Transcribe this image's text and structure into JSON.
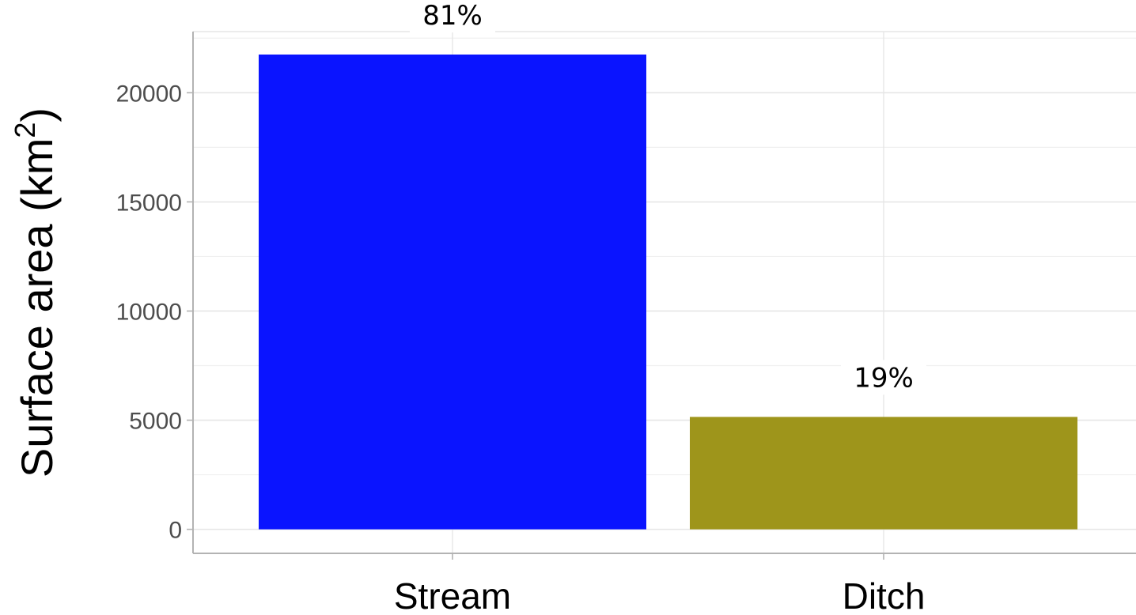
{
  "chart_data": {
    "type": "bar",
    "categories": [
      "Stream",
      "Ditch"
    ],
    "values": [
      21750,
      5150
    ],
    "data_labels": [
      "81%",
      "19%"
    ],
    "colors": [
      "#0a14ff",
      "#9e951b"
    ],
    "ylabel_main": "Surface area (km",
    "ylabel_sup": "2",
    "ylabel_close": ")",
    "ylim": [
      -1100,
      22800
    ],
    "yticks": [
      0,
      5000,
      10000,
      15000,
      20000
    ],
    "ytick_labels": [
      "0",
      "5000",
      "10000",
      "15000",
      "20000"
    ],
    "grid": true,
    "legend": "none"
  }
}
